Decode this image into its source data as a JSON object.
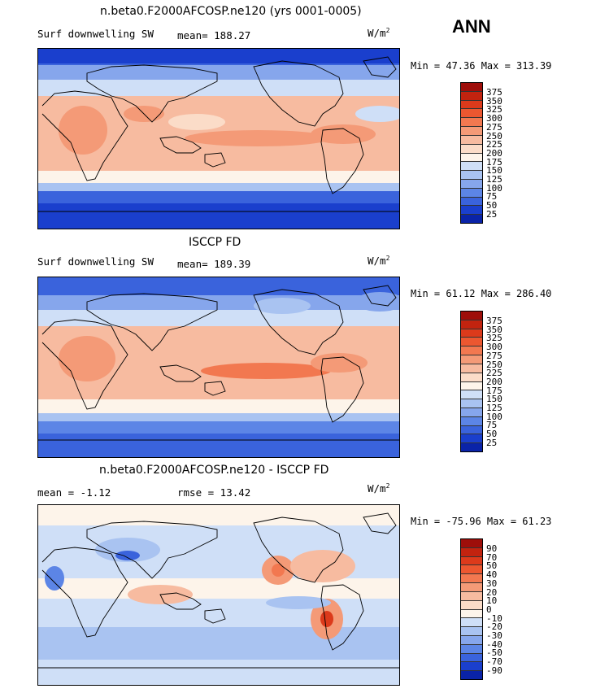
{
  "season": "ANN",
  "units_text": "W/m",
  "units_sup": "2",
  "panels": [
    {
      "title": "n.beta0.F2000AFCOSP.ne120 (yrs 0001-0005)",
      "left_label": "Surf downwelling SW",
      "mid_label": "mean= 188.27",
      "min_max": "Min =  47.36 Max = 313.39",
      "colorbar_labels": [
        "375",
        "350",
        "325",
        "300",
        "275",
        "250",
        "225",
        "200",
        "175",
        "150",
        "125",
        "100",
        "75",
        "50",
        "25"
      ]
    },
    {
      "title": "ISCCP FD",
      "left_label": "Surf downwelling SW",
      "mid_label": "mean= 189.39",
      "min_max": "Min =  61.12 Max = 286.40",
      "colorbar_labels": [
        "375",
        "350",
        "325",
        "300",
        "275",
        "250",
        "225",
        "200",
        "175",
        "150",
        "125",
        "100",
        "75",
        "50",
        "25"
      ]
    },
    {
      "title": "n.beta0.F2000AFCOSP.ne120 - ISCCP FD",
      "left_label": "mean =  -1.12",
      "mid_label": "rmse =  13.42",
      "min_max": "Min = -75.96 Max =  61.23",
      "colorbar_labels": [
        "90",
        "70",
        "50",
        "40",
        "30",
        "20",
        "10",
        "0",
        "-10",
        "-20",
        "-30",
        "-40",
        "-50",
        "-70",
        "-90"
      ]
    }
  ],
  "colors": {
    "scale": [
      "#9e0e0a",
      "#c2230f",
      "#dc3a1b",
      "#ec5730",
      "#f27850",
      "#f49a77",
      "#f7bba0",
      "#fbdcc8",
      "#fdf4ea",
      "#cfdff7",
      "#a9c3f1",
      "#86a6ec",
      "#5c85e6",
      "#3a63dc",
      "#1a3fcd",
      "#0a23a8",
      "#06127a"
    ],
    "land_line": "#000000"
  }
}
